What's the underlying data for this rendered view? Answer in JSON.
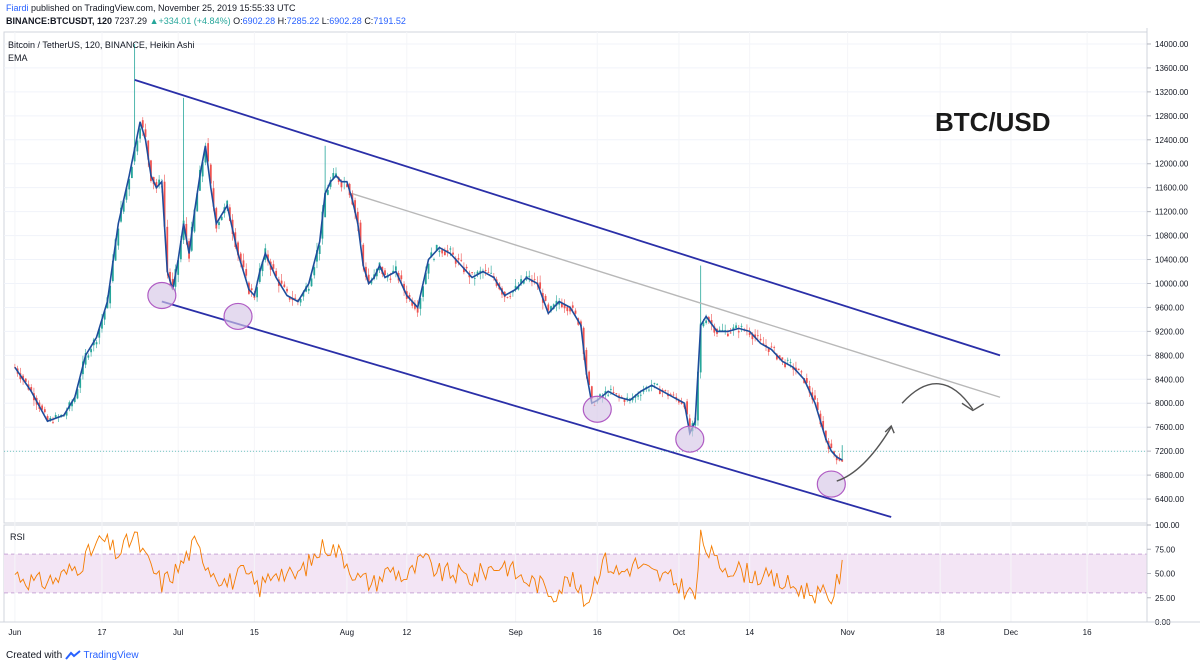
{
  "header": {
    "author": "Fiardi",
    "published": "published on TradingView.com, November 25, 2019 15:55:33 UTC",
    "symbol": "BINANCE:BTCUSDT, 120",
    "last": "7237.29",
    "change": "+334.01 (+4.84%)",
    "o_label": "O:",
    "o_val": "6902.28",
    "h_label": "H:",
    "h_val": "7285.22",
    "l_label": "L:",
    "l_val": "6902.28",
    "c_label": "C:",
    "c_val": "7191.52"
  },
  "legend": {
    "main": "Bitcoin / TetherUS, 120, BINANCE, Heikin Ashi",
    "ema": "EMA",
    "rsi": "RSI"
  },
  "annotation": {
    "title": "BTC/USD"
  },
  "footer": {
    "prefix": "Created with",
    "brand": "TradingView"
  },
  "colors": {
    "channel": "#2a2fa8",
    "midline": "#b8b8b8",
    "ema": "#1e4d9c",
    "bull": "#26a69a",
    "bear": "#ef5350",
    "rsi": "#f57c00",
    "rsi_band": "#f3e5f5",
    "circle_fill": "#d6c6e6",
    "circle_stroke": "#b05cc4",
    "arrow": "#555555"
  },
  "icons": [
    "tradingview-logo-icon",
    "up-triangle-icon"
  ],
  "chart_data": [
    {
      "type": "line",
      "title": "Bitcoin / TetherUS, 120, BINANCE, Heikin Ashi",
      "ylim": [
        6000,
        14200
      ],
      "y_ticks": [
        "6400.00",
        "6800.00",
        "7200.00",
        "7600.00",
        "8000.00",
        "8400.00",
        "8800.00",
        "9200.00",
        "9600.00",
        "10000.00",
        "10400.00",
        "10800.00",
        "11200.00",
        "11600.00",
        "12000.00",
        "12400.00",
        "12800.00",
        "13200.00",
        "13600.00",
        "14000.00"
      ],
      "y_tick_values": [
        6400,
        6800,
        7200,
        7600,
        8000,
        8400,
        8800,
        9200,
        9600,
        10000,
        10400,
        10800,
        11200,
        11600,
        12000,
        12400,
        12800,
        13200,
        13600,
        14000
      ],
      "x_labels": [
        "Jun",
        "17",
        "Jul",
        "15",
        "Aug",
        "12",
        "Sep",
        "16",
        "Oct",
        "14",
        "Nov",
        "18",
        "Dec",
        "16"
      ],
      "x_label_days": [
        0,
        16,
        30,
        44,
        61,
        72,
        92,
        107,
        122,
        135,
        153,
        170,
        183,
        197
      ],
      "series": [
        {
          "name": "EMA",
          "points": [
            [
              0,
              8600
            ],
            [
              3,
              8200
            ],
            [
              6,
              7700
            ],
            [
              9,
              7800
            ],
            [
              11,
              8100
            ],
            [
              13,
              8800
            ],
            [
              15,
              9100
            ],
            [
              17,
              9700
            ],
            [
              19,
              11000
            ],
            [
              21,
              11800
            ],
            [
              23,
              12700
            ],
            [
              24,
              12400
            ],
            [
              25,
              11800
            ],
            [
              26,
              11600
            ],
            [
              27,
              11700
            ],
            [
              28,
              10200
            ],
            [
              29,
              9900
            ],
            [
              30,
              10400
            ],
            [
              31,
              11000
            ],
            [
              32,
              10500
            ],
            [
              33,
              11200
            ],
            [
              34,
              11800
            ],
            [
              35,
              12300
            ],
            [
              36,
              11600
            ],
            [
              37,
              11000
            ],
            [
              39,
              11300
            ],
            [
              41,
              10500
            ],
            [
              43,
              9900
            ],
            [
              44,
              9800
            ],
            [
              45,
              10200
            ],
            [
              46,
              10500
            ],
            [
              48,
              10100
            ],
            [
              50,
              9800
            ],
            [
              52,
              9700
            ],
            [
              54,
              10000
            ],
            [
              56,
              10700
            ],
            [
              57,
              11500
            ],
            [
              58,
              11700
            ],
            [
              59,
              11800
            ],
            [
              60,
              11700
            ],
            [
              61,
              11700
            ],
            [
              62,
              11400
            ],
            [
              63,
              11000
            ],
            [
              64,
              10300
            ],
            [
              65,
              10000
            ],
            [
              66,
              10100
            ],
            [
              67,
              10300
            ],
            [
              68,
              10100
            ],
            [
              70,
              10200
            ],
            [
              72,
              9800
            ],
            [
              74,
              9600
            ],
            [
              76,
              10400
            ],
            [
              78,
              10600
            ],
            [
              80,
              10500
            ],
            [
              82,
              10300
            ],
            [
              84,
              10100
            ],
            [
              86,
              10200
            ],
            [
              88,
              10100
            ],
            [
              90,
              9800
            ],
            [
              92,
              9900
            ],
            [
              94,
              10100
            ],
            [
              96,
              10000
            ],
            [
              98,
              9500
            ],
            [
              100,
              9700
            ],
            [
              102,
              9600
            ],
            [
              104,
              9300
            ],
            [
              105,
              8500
            ],
            [
              106,
              8000
            ],
            [
              107,
              8050
            ],
            [
              109,
              8200
            ],
            [
              111,
              8100
            ],
            [
              113,
              8050
            ],
            [
              115,
              8200
            ],
            [
              117,
              8300
            ],
            [
              119,
              8200
            ],
            [
              121,
              8100
            ],
            [
              123,
              8000
            ],
            [
              124,
              7500
            ],
            [
              125,
              7700
            ],
            [
              126,
              9300
            ],
            [
              127,
              9450
            ],
            [
              129,
              9200
            ],
            [
              131,
              9200
            ],
            [
              133,
              9250
            ],
            [
              135,
              9200
            ],
            [
              137,
              9000
            ],
            [
              139,
              8900
            ],
            [
              141,
              8700
            ],
            [
              143,
              8600
            ],
            [
              145,
              8400
            ],
            [
              147,
              8000
            ],
            [
              149,
              7400
            ],
            [
              150,
              7200
            ],
            [
              151,
              7100
            ],
            [
              152,
              7050
            ]
          ]
        },
        {
          "name": "upper channel",
          "points": [
            [
              22,
              13400
            ],
            [
              181,
              8800
            ]
          ]
        },
        {
          "name": "lower channel",
          "points": [
            [
              27,
              9700
            ],
            [
              161,
              6100
            ]
          ]
        },
        {
          "name": "midline",
          "points": [
            [
              62,
              11500
            ],
            [
              181,
              8100
            ]
          ]
        }
      ]
    },
    {
      "type": "line",
      "title": "RSI",
      "ylim": [
        0,
        100
      ],
      "y_ticks": [
        "0.00",
        "25.00",
        "50.00",
        "75.00",
        "100.00"
      ],
      "y_tick_values": [
        0,
        25,
        50,
        75,
        100
      ],
      "band": [
        30,
        70
      ],
      "series": [
        {
          "name": "RSI",
          "points": [
            [
              0,
              50
            ],
            [
              4,
              40
            ],
            [
              8,
              45
            ],
            [
              12,
              60
            ],
            [
              16,
              85
            ],
            [
              19,
              70
            ],
            [
              22,
              90
            ],
            [
              24,
              65
            ],
            [
              27,
              40
            ],
            [
              30,
              55
            ],
            [
              33,
              80
            ],
            [
              36,
              55
            ],
            [
              39,
              40
            ],
            [
              42,
              50
            ],
            [
              45,
              35
            ],
            [
              48,
              55
            ],
            [
              51,
              45
            ],
            [
              54,
              60
            ],
            [
              57,
              80
            ],
            [
              60,
              70
            ],
            [
              63,
              45
            ],
            [
              66,
              40
            ],
            [
              69,
              55
            ],
            [
              72,
              45
            ],
            [
              75,
              65
            ],
            [
              78,
              50
            ],
            [
              81,
              50
            ],
            [
              84,
              45
            ],
            [
              87,
              55
            ],
            [
              90,
              60
            ],
            [
              93,
              45
            ],
            [
              96,
              40
            ],
            [
              99,
              30
            ],
            [
              102,
              45
            ],
            [
              105,
              20
            ],
            [
              108,
              65
            ],
            [
              111,
              50
            ],
            [
              114,
              60
            ],
            [
              117,
              50
            ],
            [
              120,
              45
            ],
            [
              123,
              35
            ],
            [
              125,
              25
            ],
            [
              126,
              85
            ],
            [
              129,
              60
            ],
            [
              132,
              55
            ],
            [
              135,
              50
            ],
            [
              138,
              45
            ],
            [
              141,
              40
            ],
            [
              144,
              35
            ],
            [
              147,
              30
            ],
            [
              150,
              25
            ],
            [
              152,
              55
            ]
          ]
        }
      ]
    }
  ]
}
